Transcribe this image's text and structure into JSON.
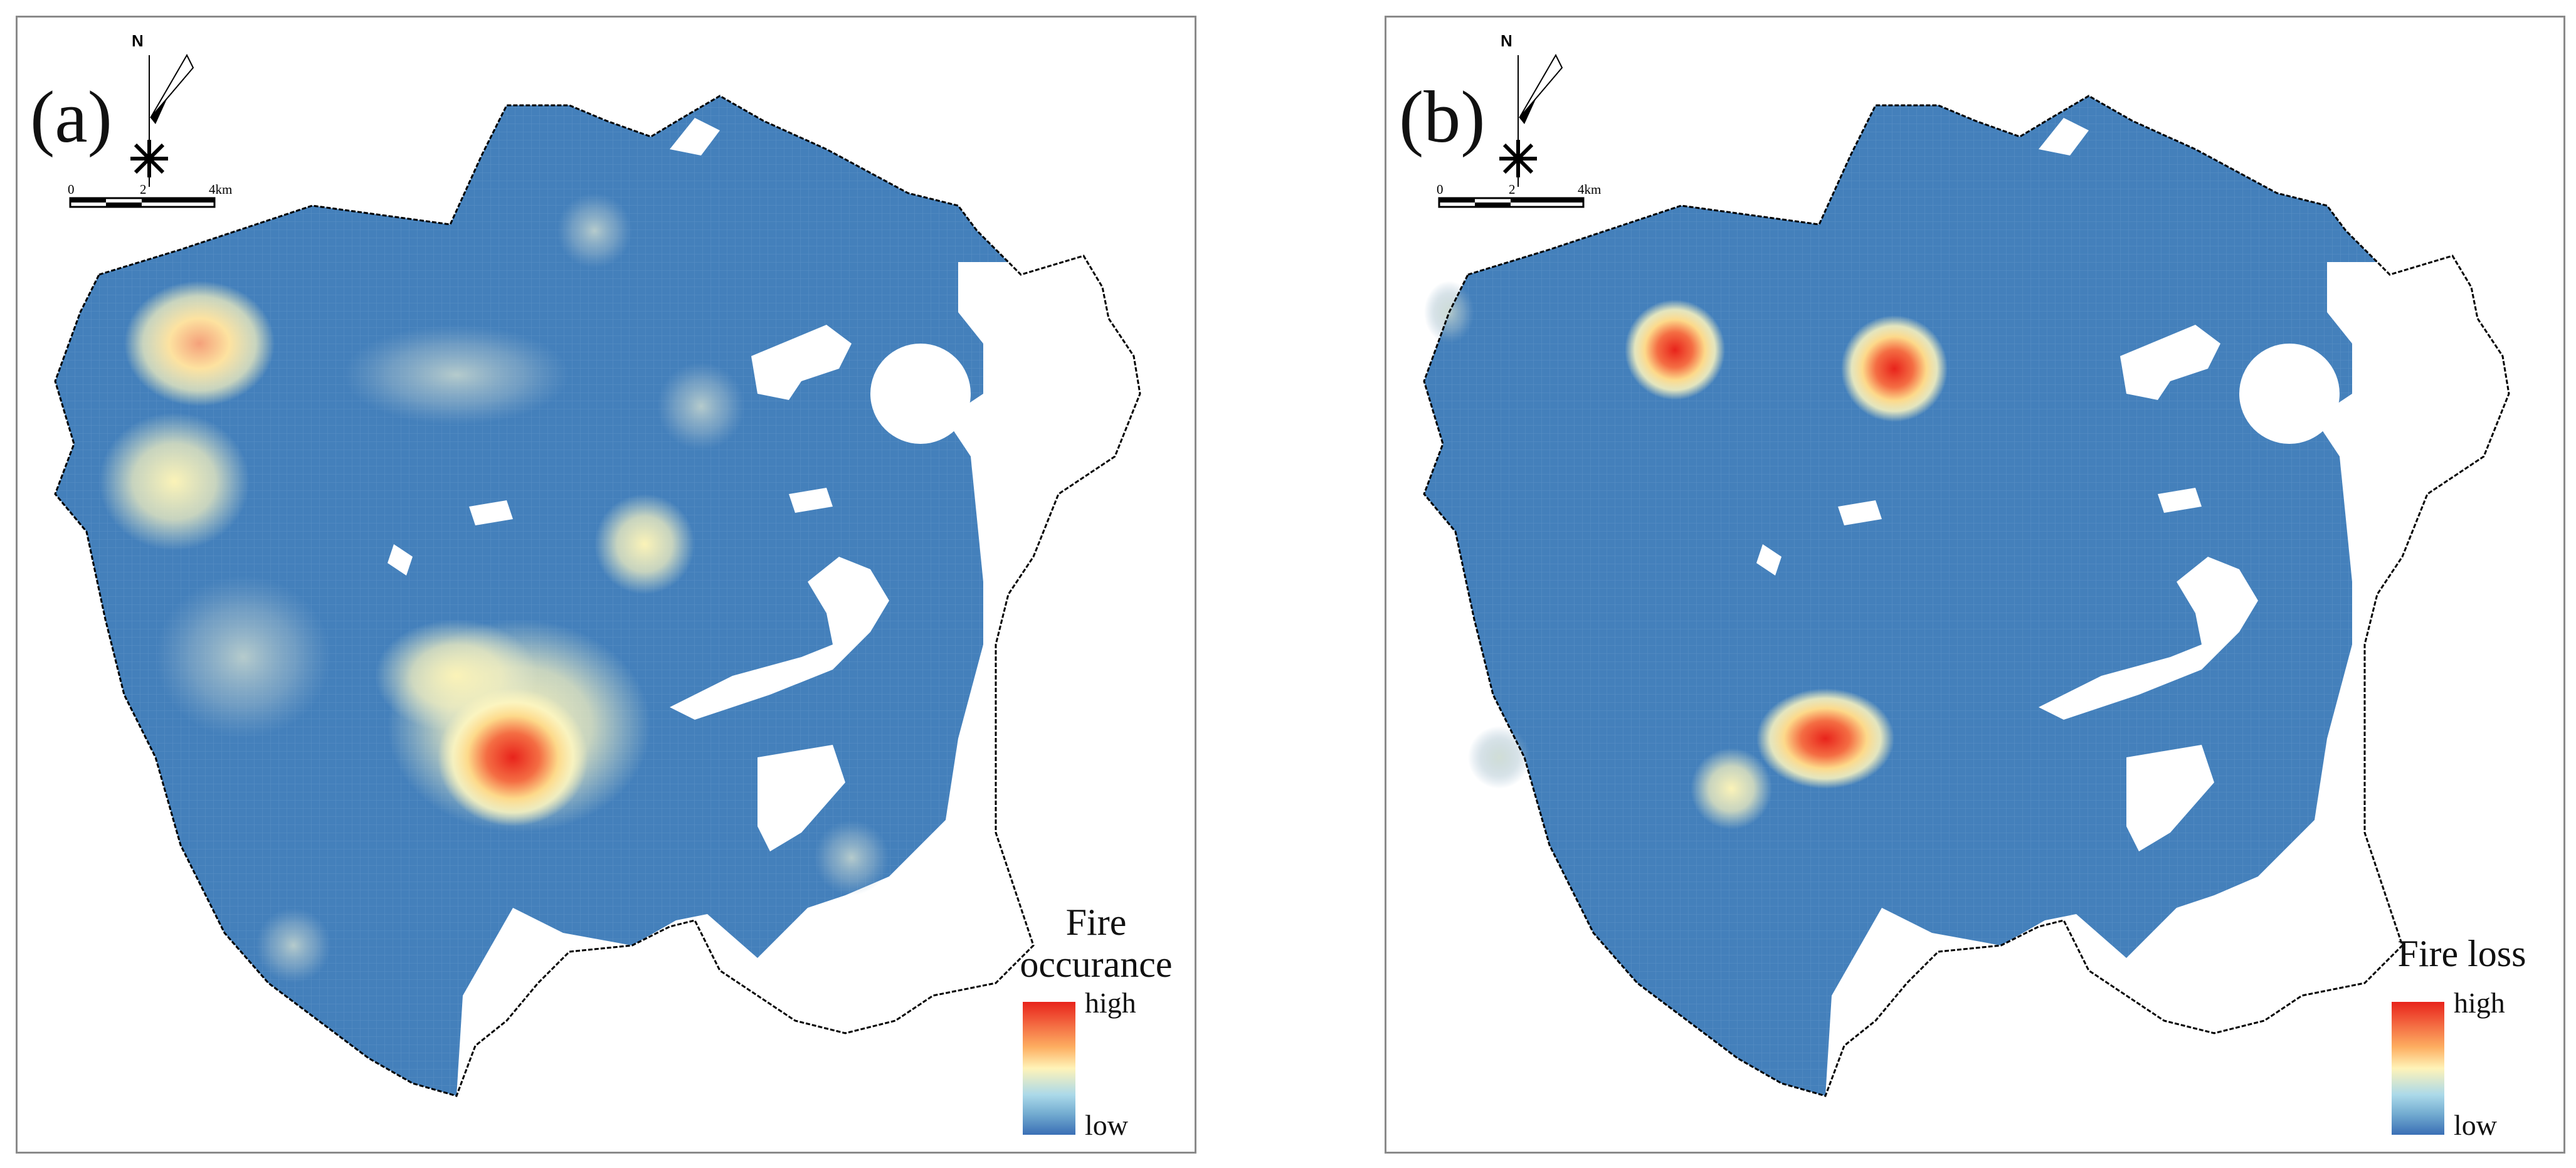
{
  "colors": {
    "base": "#4480bb",
    "border": "#000000",
    "hotspot_low": "#fff7c0",
    "hotspot_mid": "#fdae61",
    "hotspot_high": "#e8231b",
    "ramp_low": "#3a6fb5",
    "ramp_high": "#e8231b"
  },
  "panels": [
    {
      "label": "(a)",
      "legend_title_lines": [
        "Fire",
        "occurance"
      ],
      "legend_high": "high",
      "legend_low": "low",
      "north_label": "N",
      "scale_ticks": [
        "0",
        "2",
        "4km"
      ]
    },
    {
      "label": "(b)",
      "legend_title_lines": [
        "Fire loss"
      ],
      "legend_high": "high",
      "legend_low": "low",
      "north_label": "N",
      "scale_ticks": [
        "0",
        "2",
        "4km"
      ]
    }
  ]
}
